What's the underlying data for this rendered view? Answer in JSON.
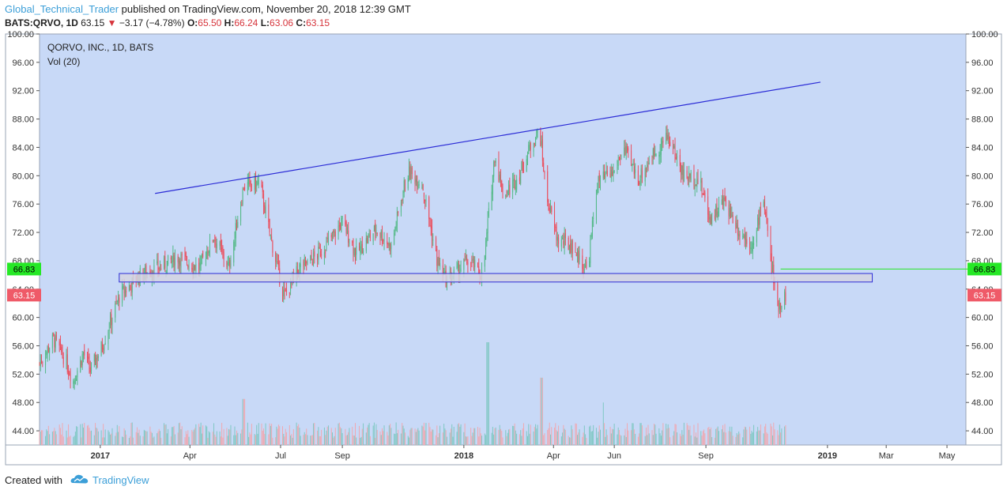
{
  "header": {
    "author": "Global_Technical_Trader",
    "published": "published on TradingView.com, November 20, 2018 12:39 GMT",
    "symbol": "BATS:QRVO, 1D",
    "last": "63.15",
    "change": "−3.17 (−4.78%)",
    "o_label": "O:",
    "o_value": "65.50",
    "h_label": "H:",
    "h_value": "66.24",
    "l_label": "L:",
    "l_value": "63.06",
    "c_label": "C:",
    "c_value": "63.15"
  },
  "legend": {
    "title": "QORVO, INC., 1D, BATS",
    "indicator": "Vol (20)"
  },
  "footer": {
    "created_with": "Created with",
    "brand": "TradingView"
  },
  "colors": {
    "background": "#c8d9f7",
    "up": "#53b987",
    "down": "#eb4d5c",
    "volume_up": "#7fc8c3",
    "volume_down": "#f0a8b0",
    "trendline": "#2b2bd6",
    "zone_fill": "#d4d4e2",
    "zone_border": "#2b2bd6",
    "marker_green": "#26e826",
    "marker_red": "#ef5a68"
  },
  "chart_data": {
    "type": "candlestick",
    "title": "QORVO, INC., 1D, BATS",
    "indicator": "Vol (20)",
    "x_range": [
      "2016-11-01",
      "2019-05-20"
    ],
    "y_range": [
      42.0,
      100.0
    ],
    "y_ticks": [
      "100.00",
      "96.00",
      "92.00",
      "88.00",
      "84.00",
      "80.00",
      "76.00",
      "72.00",
      "68.00",
      "64.00",
      "60.00",
      "56.00",
      "52.00",
      "48.00",
      "44.00"
    ],
    "x_ticks": [
      {
        "label": "2017",
        "date": "2017-01-01",
        "bold": true
      },
      {
        "label": "Apr",
        "date": "2017-04-01"
      },
      {
        "label": "Jul",
        "date": "2017-07-01"
      },
      {
        "label": "Sep",
        "date": "2017-09-01"
      },
      {
        "label": "2018",
        "date": "2018-01-01",
        "bold": true
      },
      {
        "label": "Apr",
        "date": "2018-04-01"
      },
      {
        "label": "Jun",
        "date": "2018-06-01"
      },
      {
        "label": "Sep",
        "date": "2018-09-01"
      },
      {
        "label": "2019",
        "date": "2019-01-01",
        "bold": true
      },
      {
        "label": "Mar",
        "date": "2019-03-01"
      },
      {
        "label": "May",
        "date": "2019-05-01"
      }
    ],
    "price_path": [
      [
        "2016-11-01",
        53.5
      ],
      [
        "2016-11-15",
        57.0
      ],
      [
        "2016-11-25",
        54.5
      ],
      [
        "2016-12-05",
        51.0
      ],
      [
        "2016-12-15",
        55.0
      ],
      [
        "2016-12-22",
        52.5
      ],
      [
        "2017-01-03",
        56.0
      ],
      [
        "2017-01-20",
        63.0
      ],
      [
        "2017-02-10",
        66.0
      ],
      [
        "2017-03-01",
        67.0
      ],
      [
        "2017-03-20",
        68.5
      ],
      [
        "2017-04-10",
        67.0
      ],
      [
        "2017-04-25",
        71.5
      ],
      [
        "2017-05-10",
        67.0
      ],
      [
        "2017-05-25",
        78.5
      ],
      [
        "2017-06-10",
        79.0
      ],
      [
        "2017-06-20",
        72.0
      ],
      [
        "2017-07-01",
        65.0
      ],
      [
        "2017-07-05",
        63.0
      ],
      [
        "2017-07-20",
        67.0
      ],
      [
        "2017-08-05",
        68.5
      ],
      [
        "2017-08-20",
        71.0
      ],
      [
        "2017-09-01",
        73.5
      ],
      [
        "2017-09-15",
        69.0
      ],
      [
        "2017-10-05",
        72.5
      ],
      [
        "2017-10-20",
        70.0
      ],
      [
        "2017-11-05",
        80.5
      ],
      [
        "2017-11-20",
        79.0
      ],
      [
        "2017-12-05",
        68.0
      ],
      [
        "2017-12-15",
        65.0
      ],
      [
        "2018-01-05",
        68.0
      ],
      [
        "2018-01-20",
        66.0
      ],
      [
        "2018-02-01",
        83.0
      ],
      [
        "2018-02-10",
        77.0
      ],
      [
        "2018-02-25",
        80.0
      ],
      [
        "2018-03-10",
        84.5
      ],
      [
        "2018-03-18",
        86.5
      ],
      [
        "2018-03-25",
        77.0
      ],
      [
        "2018-04-05",
        71.0
      ],
      [
        "2018-04-20",
        70.0
      ],
      [
        "2018-05-05",
        66.5
      ],
      [
        "2018-05-15",
        79.0
      ],
      [
        "2018-06-01",
        80.5
      ],
      [
        "2018-06-10",
        84.0
      ],
      [
        "2018-06-25",
        79.5
      ],
      [
        "2018-07-10",
        83.0
      ],
      [
        "2018-07-25",
        85.5
      ],
      [
        "2018-08-10",
        80.0
      ],
      [
        "2018-08-25",
        79.5
      ],
      [
        "2018-09-05",
        74.0
      ],
      [
        "2018-09-20",
        76.5
      ],
      [
        "2018-10-05",
        72.0
      ],
      [
        "2018-10-20",
        70.0
      ],
      [
        "2018-10-28",
        78.0
      ],
      [
        "2018-11-05",
        68.0
      ],
      [
        "2018-11-12",
        61.5
      ],
      [
        "2018-11-20",
        63.15
      ]
    ],
    "volume_baseline": 42.0,
    "volume_spikes": [
      {
        "date": "2018-01-25",
        "top": 56.5
      },
      {
        "date": "2018-03-20",
        "top": 51.5
      },
      {
        "date": "2017-05-25",
        "top": 48.5
      },
      {
        "date": "2018-05-20",
        "top": 48.0
      }
    ],
    "annotations": {
      "trendline": {
        "from": [
          "2017-02-25",
          77.5
        ],
        "to": [
          "2018-12-25",
          93.2
        ]
      },
      "zone": {
        "from_date": "2017-01-20",
        "to_date": "2019-02-15",
        "top": 66.2,
        "bottom": 65.0
      },
      "green_line": {
        "from_date": "2018-11-15",
        "to_date": "2019-05-20",
        "price": 66.83
      }
    },
    "price_labels": [
      {
        "value": "66.83",
        "price": 66.83,
        "color": "#26e826",
        "text_color": "#000000"
      },
      {
        "value": "63.15",
        "price": 63.15,
        "color": "#ef5a68",
        "text_color": "#ffffff"
      }
    ]
  }
}
